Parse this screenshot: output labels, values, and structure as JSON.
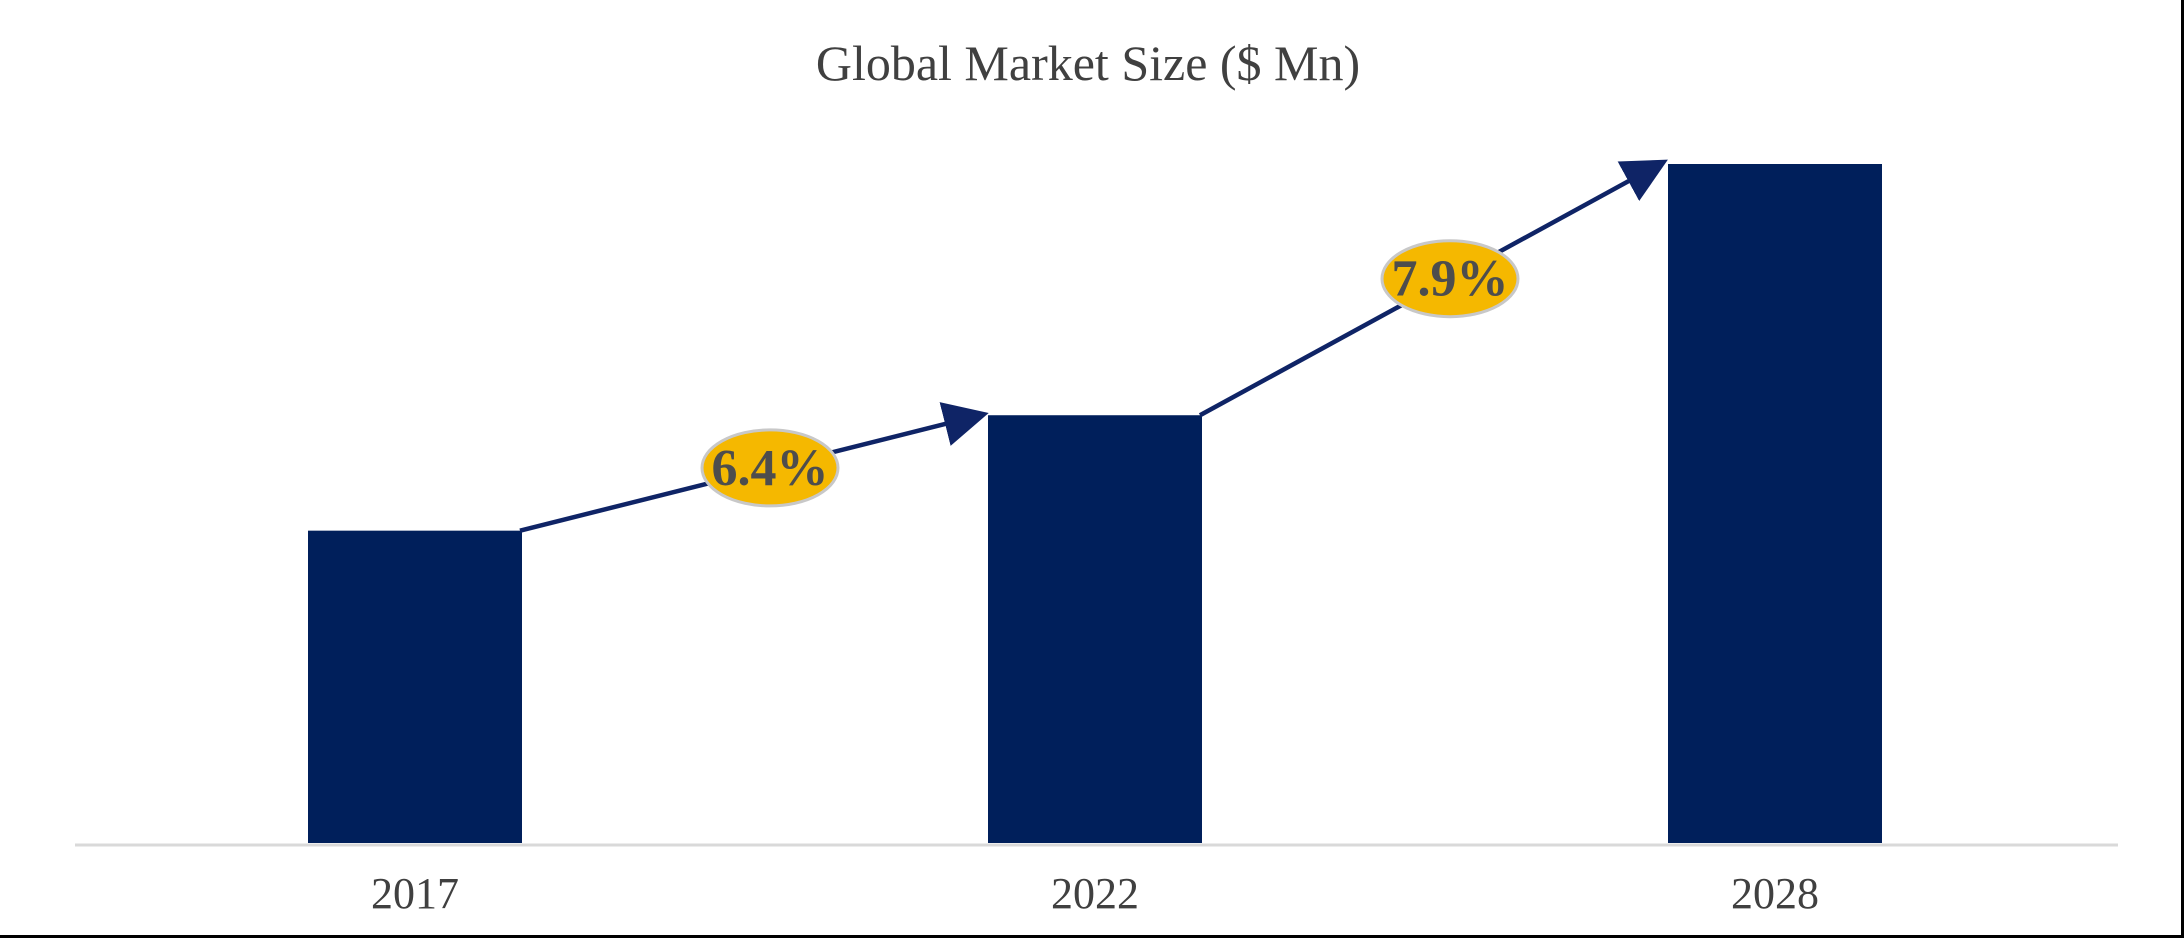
{
  "chart_data": {
    "type": "bar",
    "title": "Global Market Size ($ Mn)",
    "xlabel": "",
    "ylabel": "",
    "categories": [
      "2017",
      "2022",
      "2028"
    ],
    "values": [
      46,
      63,
      100
    ],
    "ylim": [
      0,
      100
    ],
    "grid": false,
    "legend": "none",
    "annotations": [
      {
        "from": "2017",
        "to": "2022",
        "label": "6.4%"
      },
      {
        "from": "2022",
        "to": "2028",
        "label": "7.9%"
      }
    ],
    "colors": {
      "bar": "#001f5b",
      "arrow": "#0f2466",
      "badge_fill": "#f5b800",
      "badge_stroke": "#c8c8c8",
      "axis": "#d9d9d9",
      "text": "#404040"
    }
  }
}
